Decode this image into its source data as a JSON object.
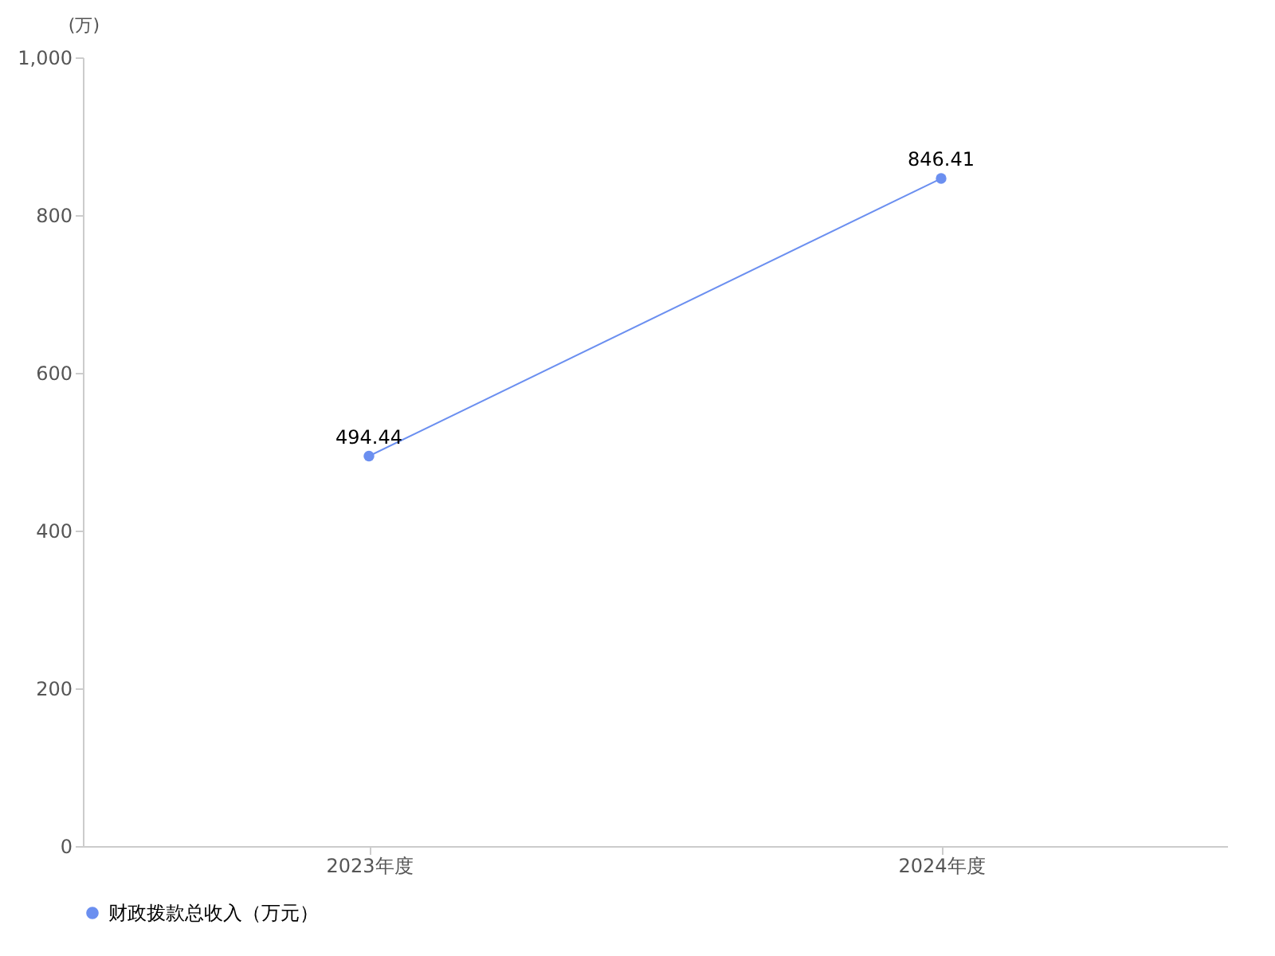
{
  "chart_data": {
    "type": "line",
    "ylabel": "(万)",
    "categories": [
      "2023年度",
      "2024年度"
    ],
    "series": [
      {
        "name": "财政拨款总收入（万元）",
        "color": "#6b8ff0",
        "values": [
          494.44,
          846.41
        ]
      }
    ],
    "ylim": [
      0,
      1000
    ],
    "yticks": [
      0,
      200,
      400,
      600,
      800,
      {
        "value": 1000,
        "label": "1,000"
      }
    ],
    "data_labels": true,
    "marker": "circle",
    "legend": "bottom",
    "grid": false
  }
}
